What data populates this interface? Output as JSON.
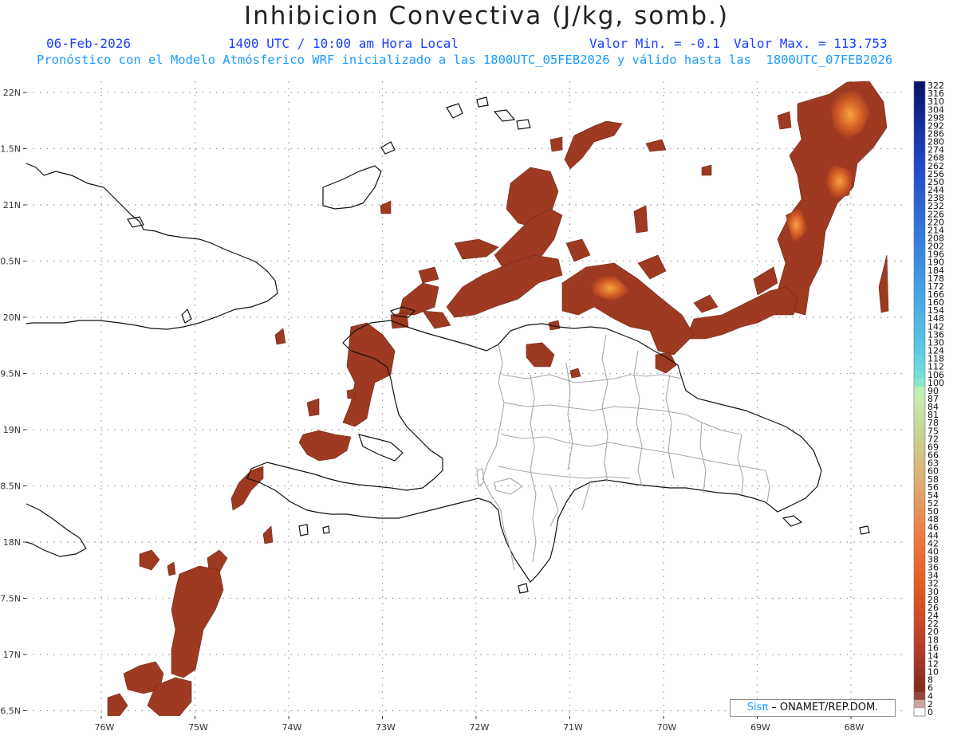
{
  "header": {
    "title": "Inhibicion Convectiva (J/kg, somb.)",
    "date": "06-Feb-2026",
    "time": "1400 UTC / 10:00 am Hora Local",
    "value_min": "Valor Min. = -0.1",
    "value_max": "Valor Max. = 113.753",
    "forecast_line": "Pronóstico con el Modelo Atmósferico WRF inicializado a las 1800UTC_05FEB2026 y válido hasta las  1800UTC_07FEB2026"
  },
  "credit": {
    "brand": "Sisπ",
    "text": " – ONAMET/REP.DOM."
  },
  "map": {
    "lon_range": [
      -76.8,
      -67.5
    ],
    "lat_range": [
      16.45,
      22.1
    ],
    "lat_ticks": [
      "22N",
      "1.5N",
      "21N",
      "0.5N",
      "20N",
      "9.5N",
      "19N",
      "8.5N",
      "18N",
      "7.5N",
      "17N",
      "6.5N"
    ],
    "lon_ticks": [
      "76W",
      "75W",
      "74W",
      "73W",
      "72W",
      "71W",
      "70W",
      "69W",
      "68W"
    ],
    "colors": {
      "cin_fill": "#9e3a22",
      "cin_hot": "#e86a1a",
      "coast": "#111111",
      "province": "#a8a8a8",
      "grid": "#999999"
    }
  },
  "colorbar": {
    "labels": [
      "322",
      "316",
      "310",
      "304",
      "298",
      "292",
      "286",
      "280",
      "274",
      "268",
      "262",
      "256",
      "250",
      "244",
      "238",
      "232",
      "226",
      "220",
      "214",
      "208",
      "202",
      "196",
      "190",
      "184",
      "178",
      "172",
      "166",
      "160",
      "154",
      "148",
      "142",
      "136",
      "130",
      "124",
      "118",
      "112",
      "106",
      "100",
      "90",
      "87",
      "84",
      "81",
      "78",
      "75",
      "72",
      "69",
      "66",
      "63",
      "60",
      "58",
      "56",
      "54",
      "52",
      "50",
      "48",
      "46",
      "44",
      "42",
      "40",
      "38",
      "36",
      "34",
      "32",
      "30",
      "28",
      "26",
      "24",
      "22",
      "20",
      "18",
      "16",
      "14",
      "12",
      "10",
      "8",
      "6",
      "4",
      "2",
      "0"
    ]
  }
}
